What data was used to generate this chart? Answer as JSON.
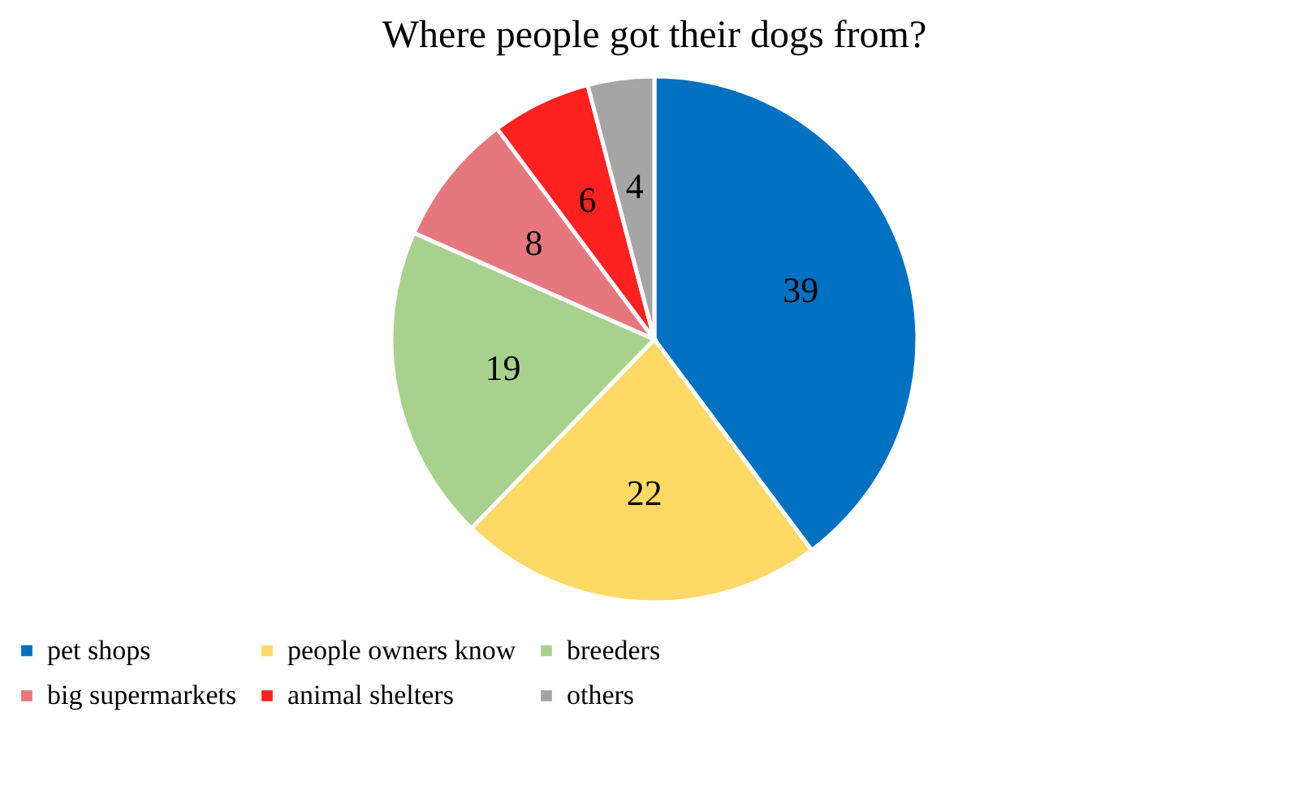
{
  "chart_data": {
    "type": "pie",
    "title": "Where people got their dogs from?",
    "categories": [
      "pet shops",
      "people owners know",
      "breeders",
      "big supermarkets",
      "animal shelters",
      "others"
    ],
    "values": [
      39,
      22,
      19,
      8,
      6,
      4
    ],
    "colors": [
      "#0070c0",
      "#ffd966",
      "#a9d18e",
      "#e6777f",
      "#ff2020",
      "#a5a5a5"
    ],
    "data_labels": true,
    "legend": "bottom"
  }
}
